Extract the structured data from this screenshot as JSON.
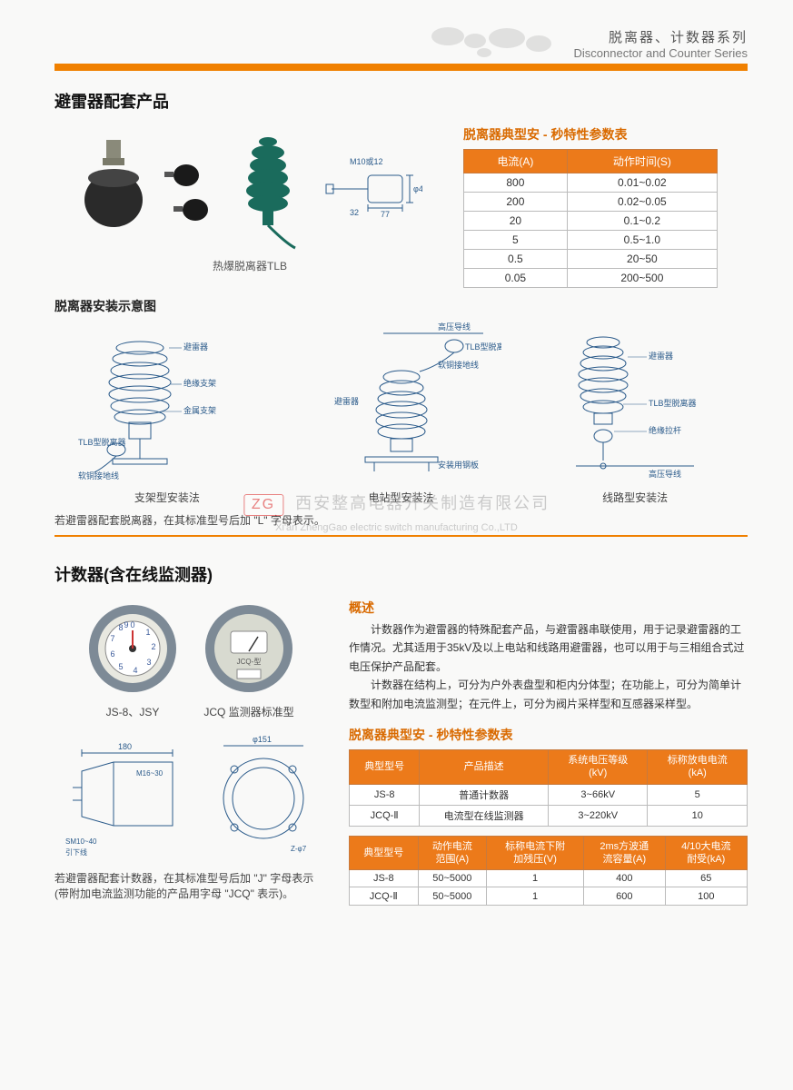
{
  "header": {
    "title_cn": "脱离器、计数器系列",
    "title_en": "Disconnector and Counter Series"
  },
  "accent_color": "#f08000",
  "section1": {
    "title": "避雷器配套产品",
    "product_caption": "热爆脱离器TLB",
    "dim_label": "M10或12",
    "param_table": {
      "title": "脱离器典型安 - 秒特性参数表",
      "headers": [
        "电流(A)",
        "动作时间(S)"
      ],
      "rows": [
        [
          "800",
          "0.01~0.02"
        ],
        [
          "200",
          "0.02~0.05"
        ],
        [
          "20",
          "0.1~0.2"
        ],
        [
          "5",
          "0.5~1.0"
        ],
        [
          "0.5",
          "20~50"
        ],
        [
          "0.05",
          "200~500"
        ]
      ],
      "header_bg": "#ec7a1a",
      "header_fg": "#ffffff",
      "cell_bg": "#ffffff",
      "border_color": "#bbbbbb"
    },
    "install": {
      "title": "脱离器安装示意图",
      "columns": [
        {
          "caption": "支架型安装法",
          "labels": [
            "避雷器",
            "绝缘支架",
            "金属支架",
            "TLB型脱离器",
            "软铜接地线"
          ]
        },
        {
          "caption": "电站型安装法",
          "labels": [
            "高压导线",
            "TLB型脱离器",
            "软铜接地线",
            "避雷器",
            "安装用钢板"
          ]
        },
        {
          "caption": "线路型安装法",
          "labels": [
            "避雷器",
            "TLB型脱离器",
            "绝缘拉杆",
            "高压导线"
          ]
        }
      ],
      "note": "若避雷器配套脱离器，在其标准型号后加 \"L\" 字母表示。"
    }
  },
  "watermark": {
    "badge": "ZG",
    "cn": "西安整高电器开关制造有限公司",
    "en": "Xi'an ZhengGao electric switch manufacturing Co.,LTD"
  },
  "section2": {
    "title": "计数器(含在线监测器)",
    "counter_left_caption": "JS-8、JSY",
    "counter_right_caption": "JCQ 监测器标准型",
    "overview_title": "概述",
    "overview_p1": "计数器作为避雷器的特殊配套产品，与避雷器串联使用，用于记录避雷器的工作情况。尤其适用于35kV及以上电站和线路用避雷器，也可以用于与三相组合式过电压保护产品配套。",
    "overview_p2": "计数器在结构上，可分为户外表盘型和柜内分体型；在功能上，可分为简单计数型和附加电流监测型；在元件上，可分为阀片采样型和互感器采样型。",
    "spec_title": "脱离器典型安 - 秒特性参数表",
    "table_a": {
      "headers": [
        "典型型号",
        "产品描述",
        "系统电压等级\n(kV)",
        "标称放电电流\n(kA)"
      ],
      "rows": [
        [
          "JS-8",
          "普通计数器",
          "3~66kV",
          "5"
        ],
        [
          "JCQ-Ⅱ",
          "电流型在线监测器",
          "3~220kV",
          "10"
        ]
      ]
    },
    "table_b": {
      "headers": [
        "典型型号",
        "动作电流\n范围(A)",
        "标称电流下附\n加残压(V)",
        "2ms方波通\n流容量(A)",
        "4/10大电流\n耐受(kA)"
      ],
      "rows": [
        [
          "JS-8",
          "50~5000",
          "1",
          "400",
          "65"
        ],
        [
          "JCQ-Ⅱ",
          "50~5000",
          "1",
          "600",
          "100"
        ]
      ]
    },
    "dim_labels": {
      "w": "180",
      "h": "M16~30",
      "grd": "SM10~40",
      "grd2": "引下线",
      "d": "φ151",
      "z": "Z-φ7"
    },
    "note": "若避雷器配套计数器，在其标准型号后加 \"J\" 字母表示(带附加电流监测功能的产品用字母 \"JCQ\" 表示)。"
  }
}
